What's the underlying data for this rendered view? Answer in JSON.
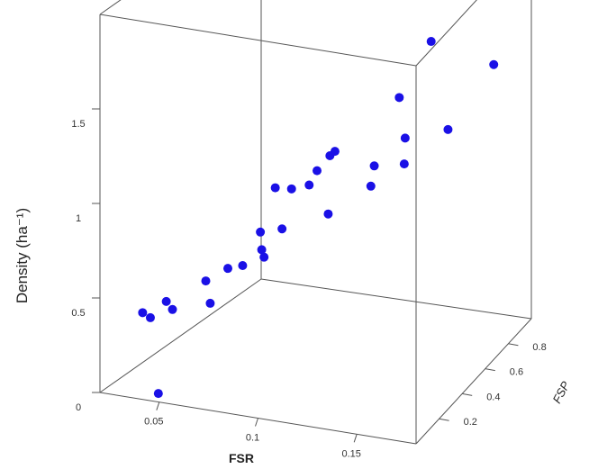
{
  "chart_data": {
    "type": "scatter",
    "projection": "3d",
    "xlabel": "FSR",
    "ylabel": "FSP",
    "zlabel": "Density (ha⁻¹)",
    "x_ticks": [
      0.05,
      0.1,
      0.15
    ],
    "x_tick_labels": [
      "0.05",
      "0.1",
      "0.15"
    ],
    "y_ticks": [
      0.2,
      0.4,
      0.6,
      0.8
    ],
    "y_tick_labels": [
      "0.2",
      "0.4",
      "0.6",
      "0.8"
    ],
    "z_ticks": [
      0,
      0.5,
      1,
      1.5
    ],
    "z_tick_labels": [
      "0",
      "0.5",
      "1",
      "1.5"
    ],
    "marker_color": "#1a10e6",
    "points": [
      {
        "x": 0.032,
        "y": 0.12,
        "z": 0.37
      },
      {
        "x": 0.036,
        "y": 0.12,
        "z": 0.35
      },
      {
        "x": 0.041,
        "y": 0.16,
        "z": 0.42
      },
      {
        "x": 0.045,
        "y": 0.15,
        "z": 0.39
      },
      {
        "x": 0.048,
        "y": 0.02,
        "z": 0.03
      },
      {
        "x": 0.056,
        "y": 0.23,
        "z": 0.51
      },
      {
        "x": 0.063,
        "y": 0.17,
        "z": 0.44
      },
      {
        "x": 0.066,
        "y": 0.25,
        "z": 0.58
      },
      {
        "x": 0.073,
        "y": 0.26,
        "z": 0.6
      },
      {
        "x": 0.077,
        "y": 0.33,
        "z": 0.74
      },
      {
        "x": 0.078,
        "y": 0.42,
        "z": 0.92
      },
      {
        "x": 0.08,
        "y": 0.3,
        "z": 0.67
      },
      {
        "x": 0.082,
        "y": 0.29,
        "z": 0.64
      },
      {
        "x": 0.086,
        "y": 0.43,
        "z": 0.92
      },
      {
        "x": 0.087,
        "y": 0.35,
        "z": 0.76
      },
      {
        "x": 0.094,
        "y": 0.45,
        "z": 0.94
      },
      {
        "x": 0.096,
        "y": 0.48,
        "z": 1.0
      },
      {
        "x": 0.1,
        "y": 0.52,
        "z": 1.06
      },
      {
        "x": 0.102,
        "y": 0.53,
        "z": 1.08
      },
      {
        "x": 0.108,
        "y": 0.4,
        "z": 0.84
      },
      {
        "x": 0.125,
        "y": 0.51,
        "z": 1.05
      },
      {
        "x": 0.126,
        "y": 0.47,
        "z": 0.97
      },
      {
        "x": 0.128,
        "y": 0.66,
        "z": 1.32
      },
      {
        "x": 0.137,
        "y": 0.58,
        "z": 1.17
      },
      {
        "x": 0.14,
        "y": 0.53,
        "z": 1.07
      },
      {
        "x": 0.138,
        "y": 0.77,
        "z": 1.56
      },
      {
        "x": 0.158,
        "y": 0.62,
        "z": 1.22
      },
      {
        "x": 0.17,
        "y": 0.95,
        "z": 1.92
      },
      {
        "x": 0.173,
        "y": 0.78,
        "z": 1.48
      }
    ]
  }
}
